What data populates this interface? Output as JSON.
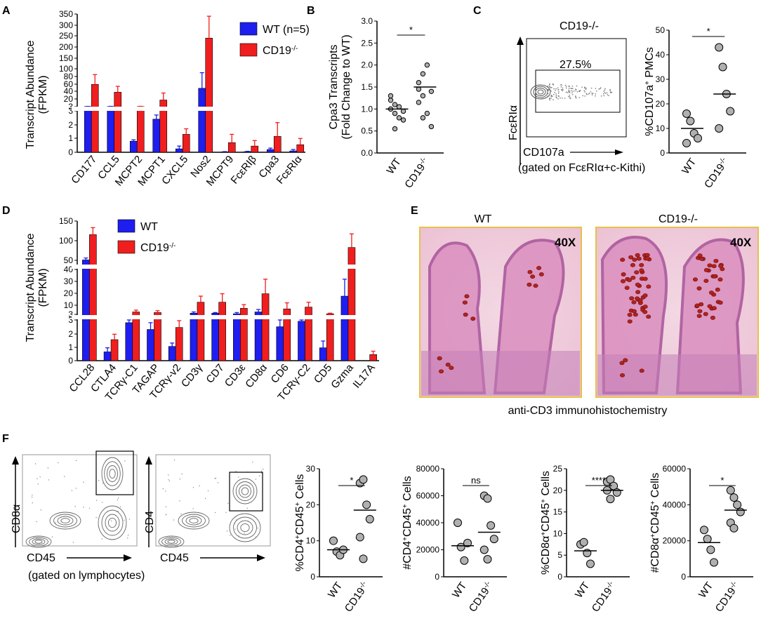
{
  "colors": {
    "wt": "#1e1ef0",
    "ko": "#f01e1e",
    "dot": "#b0b0b0",
    "micro_border": "#e8c04a"
  },
  "panels": {
    "A": {
      "label": "A",
      "ylabel1": "Transcript Abundance",
      "ylabel2": "(FPKM)"
    },
    "B": {
      "label": "B"
    },
    "C": {
      "label": "C",
      "flow_title": "CD19-/-",
      "gate_pct": "27.5%",
      "yaxis": "FcεRIα",
      "xaxis": "CD107a",
      "gated": "(gated on FcεRIα+c-Kithi)"
    },
    "D": {
      "label": "D",
      "ylabel1": "Transcript Abundance",
      "ylabel2": "(FPKM)"
    },
    "E": {
      "label": "E",
      "wt_title": "WT",
      "ko_title": "CD19-/-",
      "mag_wt": "40X",
      "mag_ko": "40X",
      "caption": "anti-CD3 immunohistochemistry"
    },
    "F": {
      "label": "F",
      "flow1_y": "CD8α",
      "flow1_x": "CD45",
      "flow2_y": "CD4",
      "flow2_x": "CD45",
      "gated": "(gated on lymphocytes)"
    }
  },
  "chart_data": [
    {
      "id": "A",
      "type": "bar",
      "legend": [
        "WT (n=5)",
        "CD19-/-"
      ],
      "categories": [
        "CD177",
        "CCL5",
        "MCPT2",
        "MCPT1",
        "CXCL5",
        "Nos2",
        "MCPT9",
        "FcεRIβ",
        "Cpa3",
        "FcεRIα"
      ],
      "series": [
        {
          "name": "WT (n=5)",
          "values": [
            3.5,
            3.5,
            0.8,
            2.4,
            0.25,
            50,
            0.03,
            0.05,
            0.2,
            0.1
          ],
          "errors": [
            0.2,
            0.3,
            0.1,
            0.3,
            0.2,
            40,
            0.02,
            0.02,
            0.1,
            0.1
          ]
        },
        {
          "name": "CD19-/-",
          "values": [
            60,
            40,
            3.3,
            20,
            1.3,
            240,
            0.7,
            0.45,
            1.15,
            0.55
          ],
          "errors": [
            25,
            15,
            0.6,
            18,
            0.4,
            100,
            0.6,
            0.4,
            1.0,
            0.45
          ]
        }
      ],
      "yticks": [
        "0",
        "1",
        "2",
        "3",
        "3",
        "20",
        "40",
        "60",
        "80",
        "100",
        "150",
        "200",
        "250",
        "300",
        "350"
      ]
    },
    {
      "id": "B",
      "type": "scatter",
      "title": "*",
      "ylabel1": "Cpa3 Transcripts",
      "ylabel2": "(Fold Change to WT)",
      "categories": [
        "WT",
        "CD19-/-"
      ],
      "points": [
        [
          1.0,
          1.1,
          1.05,
          0.95,
          1.2,
          0.9,
          0.8,
          0.75,
          1.3,
          0.55
        ],
        [
          1.6,
          1.8,
          2.0,
          1.4,
          1.45,
          1.3,
          0.9,
          0.6,
          1.15,
          0.8
        ]
      ],
      "means": [
        1.0,
        1.5
      ],
      "ylim": [
        0,
        3.0
      ],
      "yticks": [
        "0.0",
        "0.5",
        "1.0",
        "1.5",
        "2.0",
        "2.5",
        "3.0"
      ]
    },
    {
      "id": "C",
      "type": "scatter",
      "title": "*",
      "ylabel": "%CD107a+ PMCs",
      "categories": [
        "WT",
        "CD19-/-"
      ],
      "points": [
        [
          16,
          13,
          8,
          6,
          4
        ],
        [
          43,
          35,
          24,
          17,
          10
        ]
      ],
      "means": [
        10,
        24
      ],
      "ylim": [
        0,
        50
      ],
      "yticks": [
        "0",
        "10",
        "20",
        "30",
        "40",
        "50"
      ]
    },
    {
      "id": "D",
      "type": "bar",
      "legend": [
        "WT",
        "CD19-/-"
      ],
      "categories": [
        "CCL28",
        "CTLA4",
        "TCRγ-C1",
        "TAGAP",
        "TCRγ-v2",
        "CD3γ",
        "CD7",
        "CD3ε",
        "CD8α",
        "CD6",
        "TCRγ-C2",
        "CD5",
        "Gzma",
        "IL17A"
      ],
      "series": [
        {
          "name": "WT",
          "values": [
            50,
            0.65,
            2.8,
            2.3,
            1.05,
            4.0,
            4.0,
            3.5,
            5.0,
            2.5,
            2.9,
            0.95,
            18,
            0
          ],
          "errors": [
            5,
            0.3,
            0.2,
            0.5,
            0.25,
            1,
            0.5,
            1,
            2,
            0.5,
            0.1,
            0.5,
            14,
            0
          ]
        },
        {
          "name": "CD19-/-",
          "values": [
            115,
            1.55,
            5.0,
            4.5,
            2.45,
            13,
            13,
            8,
            20,
            7.5,
            9,
            3.5,
            82,
            0.45
          ],
          "errors": [
            18,
            0.4,
            1.5,
            1.5,
            0.5,
            5,
            7,
            3,
            12,
            5,
            4,
            0.5,
            35,
            0.25
          ]
        }
      ],
      "yticks": [
        "0",
        "1",
        "2",
        "3",
        "3",
        "10",
        "20",
        "30",
        "40",
        "50",
        "100",
        "150"
      ]
    },
    {
      "id": "F1",
      "type": "scatter",
      "title": "*",
      "ylabel": "%CD4+CD45+ Cells",
      "categories": [
        "WT",
        "CD19-/-"
      ],
      "points": [
        [
          10,
          7,
          6,
          7.5
        ],
        [
          26,
          27,
          20,
          16,
          11,
          5
        ]
      ],
      "means": [
        7.5,
        18.5
      ],
      "ylim": [
        0,
        30
      ],
      "yticks": [
        "0",
        "10",
        "20",
        "30"
      ]
    },
    {
      "id": "F2",
      "type": "scatter",
      "title": "ns",
      "ylabel": "#CD4+CD45+ Cells",
      "categories": [
        "WT",
        "CD19-/-"
      ],
      "points": [
        [
          40000,
          22000,
          12000,
          25000
        ],
        [
          60000,
          58000,
          38000,
          28000,
          20000,
          13000
        ]
      ],
      "means": [
        23000,
        33000
      ],
      "ylim": [
        0,
        80000
      ],
      "yticks": [
        "0",
        "20000",
        "40000",
        "60000",
        "80000"
      ]
    },
    {
      "id": "F3",
      "type": "scatter",
      "title": "****",
      "ylabel": "%CD8α+CD45+ Cells",
      "categories": [
        "WT",
        "CD19-/-"
      ],
      "points": [
        [
          7.5,
          8,
          5.5,
          3
        ],
        [
          22,
          22.5,
          21,
          19.5,
          20,
          18
        ]
      ],
      "means": [
        6,
        20
      ],
      "ylim": [
        0,
        25
      ],
      "yticks": [
        "0",
        "5",
        "10",
        "15",
        "20",
        "25"
      ]
    },
    {
      "id": "F4",
      "type": "scatter",
      "title": "*",
      "ylabel": "#CD8α+CD45+ Cells",
      "categories": [
        "WT",
        "CD19-/-"
      ],
      "points": [
        [
          26000,
          21000,
          15000,
          8000
        ],
        [
          48000,
          44000,
          40000,
          36000,
          30000,
          27000
        ]
      ],
      "means": [
        19000,
        37000
      ],
      "ylim": [
        0,
        60000
      ],
      "yticks": [
        "0",
        "20000",
        "40000",
        "60000"
      ]
    }
  ]
}
